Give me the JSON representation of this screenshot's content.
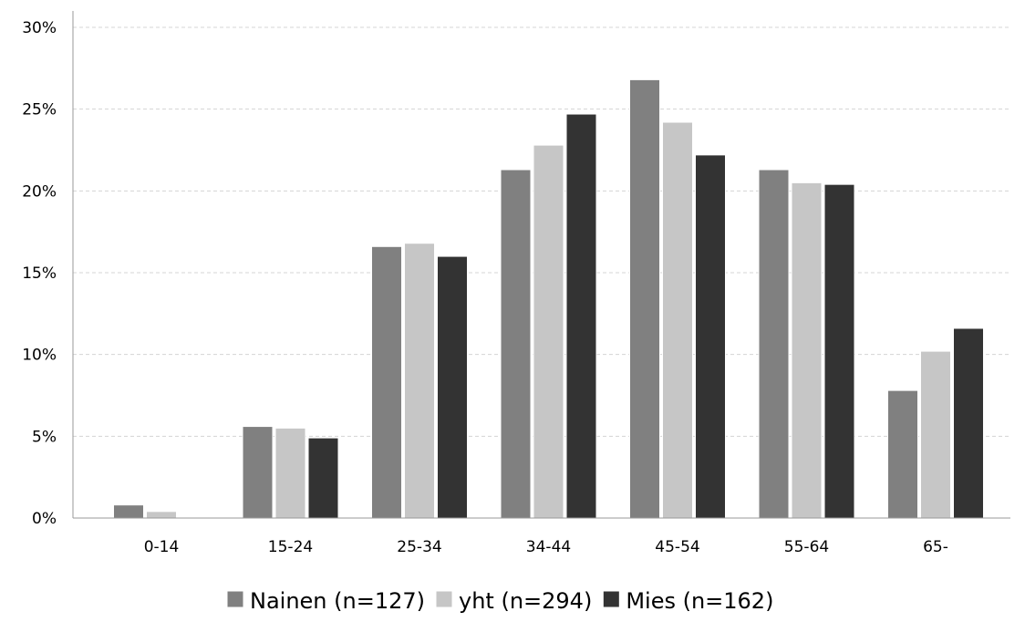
{
  "chart_data": {
    "type": "bar",
    "title": "",
    "xlabel": "",
    "ylabel": "",
    "categories": [
      "0-14",
      "15-24",
      "25-34",
      "34-44",
      "45-54",
      "55-64",
      "65-"
    ],
    "series": [
      {
        "name": "Nainen (n=127)",
        "color": "#808080",
        "values": [
          0.8,
          5.6,
          16.6,
          21.3,
          26.8,
          21.3,
          7.8
        ]
      },
      {
        "name": "yht (n=294)",
        "color": "#c6c6c6",
        "values": [
          0.4,
          5.5,
          16.8,
          22.8,
          24.2,
          20.5,
          10.2
        ]
      },
      {
        "name": "Mies (n=162)",
        "color": "#333333",
        "values": [
          0,
          4.9,
          16.0,
          24.7,
          22.2,
          20.4,
          11.6
        ]
      }
    ],
    "ylim": [
      0,
      30
    ],
    "yticks": [
      0,
      5,
      10,
      15,
      20,
      25,
      30
    ],
    "ytick_labels": [
      "0%",
      "5%",
      "10%",
      "15%",
      "20%",
      "25%",
      "30%"
    ],
    "grid": true,
    "legend_position": "bottom"
  }
}
